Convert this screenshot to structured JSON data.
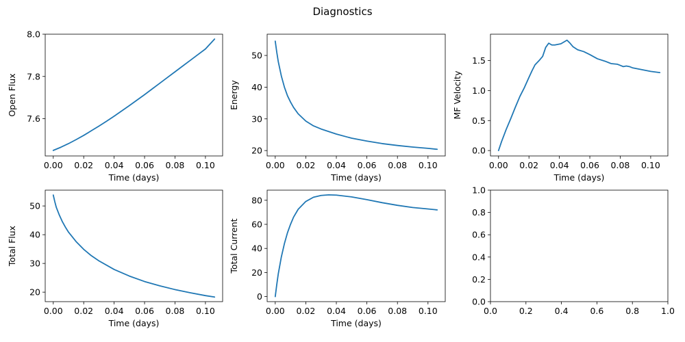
{
  "title": "Diagnostics",
  "colors": {
    "series": "#1f77b4"
  },
  "chart_data": [
    {
      "type": "line",
      "title": "",
      "xlabel": "Time (days)",
      "ylabel": "Open Flux",
      "xlim": [
        -0.0053,
        0.1113
      ],
      "ylim": [
        7.4237,
        8.0
      ],
      "xticks": [
        0.0,
        0.02,
        0.04,
        0.06,
        0.08,
        0.1
      ],
      "xticklabels": [
        "0.00",
        "0.02",
        "0.04",
        "0.06",
        "0.08",
        "0.10"
      ],
      "yticks": [
        7.6,
        7.8,
        8.0
      ],
      "yticklabels": [
        "7.6",
        "7.8",
        "8.0"
      ],
      "series": [
        {
          "x": [
            0.0,
            0.005,
            0.01,
            0.015,
            0.02,
            0.025,
            0.03,
            0.035,
            0.04,
            0.045,
            0.05,
            0.055,
            0.06,
            0.065,
            0.07,
            0.075,
            0.08,
            0.085,
            0.09,
            0.095,
            0.1,
            0.106
          ],
          "y": [
            7.45,
            7.465,
            7.482,
            7.501,
            7.521,
            7.543,
            7.565,
            7.588,
            7.612,
            7.637,
            7.662,
            7.688,
            7.714,
            7.741,
            7.768,
            7.795,
            7.822,
            7.849,
            7.876,
            7.903,
            7.93,
            7.977
          ]
        }
      ]
    },
    {
      "type": "line",
      "title": "",
      "xlabel": "Time (days)",
      "ylabel": "Energy",
      "xlim": [
        -0.0053,
        0.1113
      ],
      "ylim": [
        18.3,
        56.7
      ],
      "xticks": [
        0.0,
        0.02,
        0.04,
        0.06,
        0.08,
        0.1
      ],
      "xticklabels": [
        "0.00",
        "0.02",
        "0.04",
        "0.06",
        "0.08",
        "0.10"
      ],
      "yticks": [
        20,
        30,
        40,
        50
      ],
      "yticklabels": [
        "20",
        "30",
        "40",
        "50"
      ],
      "series": [
        {
          "x": [
            0.0,
            0.001,
            0.002,
            0.004,
            0.006,
            0.008,
            0.01,
            0.012,
            0.015,
            0.02,
            0.025,
            0.03,
            0.04,
            0.05,
            0.06,
            0.07,
            0.08,
            0.09,
            0.1,
            0.106
          ],
          "y": [
            54.5,
            51.0,
            48.0,
            43.5,
            40.0,
            37.3,
            35.3,
            33.6,
            31.6,
            29.3,
            27.8,
            26.8,
            25.2,
            23.9,
            23.0,
            22.2,
            21.6,
            21.1,
            20.7,
            20.4
          ]
        }
      ]
    },
    {
      "type": "line",
      "title": "",
      "xlabel": "Time (days)",
      "ylabel": "MF Velocity",
      "xlim": [
        -0.0053,
        0.1113
      ],
      "ylim": [
        -0.09,
        1.94
      ],
      "xticks": [
        0.0,
        0.02,
        0.04,
        0.06,
        0.08,
        0.1
      ],
      "xticklabels": [
        "0.00",
        "0.02",
        "0.04",
        "0.06",
        "0.08",
        "0.10"
      ],
      "yticks": [
        0.0,
        0.5,
        1.0,
        1.5
      ],
      "yticklabels": [
        "0.0",
        "0.5",
        "1.0",
        "1.5"
      ],
      "series": [
        {
          "x": [
            0.0,
            0.002,
            0.005,
            0.008,
            0.011,
            0.014,
            0.017,
            0.02,
            0.022,
            0.024,
            0.027,
            0.029,
            0.031,
            0.033,
            0.035,
            0.037,
            0.039,
            0.041,
            0.043,
            0.045,
            0.047,
            0.049,
            0.052,
            0.056,
            0.06,
            0.065,
            0.07,
            0.074,
            0.078,
            0.08,
            0.082,
            0.084,
            0.086,
            0.088,
            0.092,
            0.096,
            0.1,
            0.106
          ],
          "y": [
            0.0,
            0.15,
            0.35,
            0.53,
            0.72,
            0.9,
            1.05,
            1.22,
            1.33,
            1.43,
            1.51,
            1.57,
            1.72,
            1.79,
            1.76,
            1.76,
            1.77,
            1.78,
            1.81,
            1.84,
            1.79,
            1.73,
            1.68,
            1.65,
            1.6,
            1.53,
            1.49,
            1.45,
            1.44,
            1.42,
            1.4,
            1.41,
            1.4,
            1.38,
            1.36,
            1.34,
            1.32,
            1.3
          ]
        }
      ]
    },
    {
      "type": "line",
      "title": "",
      "xlabel": "Time (days)",
      "ylabel": "Total Flux",
      "xlim": [
        -0.0053,
        0.1113
      ],
      "ylim": [
        16.7,
        55.5
      ],
      "xticks": [
        0.0,
        0.02,
        0.04,
        0.06,
        0.08,
        0.1
      ],
      "xticklabels": [
        "0.00",
        "0.02",
        "0.04",
        "0.06",
        "0.08",
        "0.10"
      ],
      "yticks": [
        20,
        30,
        40,
        50
      ],
      "yticklabels": [
        "20",
        "30",
        "40",
        "50"
      ],
      "series": [
        {
          "x": [
            0.0,
            0.001,
            0.002,
            0.004,
            0.006,
            0.008,
            0.01,
            0.015,
            0.02,
            0.025,
            0.03,
            0.04,
            0.05,
            0.06,
            0.07,
            0.08,
            0.09,
            0.1,
            0.106
          ],
          "y": [
            53.8,
            51.5,
            49.5,
            46.8,
            44.5,
            42.6,
            40.9,
            37.6,
            34.9,
            32.7,
            30.9,
            27.9,
            25.6,
            23.7,
            22.2,
            20.9,
            19.8,
            18.8,
            18.3
          ]
        }
      ]
    },
    {
      "type": "line",
      "title": "",
      "xlabel": "Time (days)",
      "ylabel": "Total Current",
      "xlim": [
        -0.0053,
        0.1113
      ],
      "ylim": [
        -4.2,
        88.4
      ],
      "xticks": [
        0.0,
        0.02,
        0.04,
        0.06,
        0.08,
        0.1
      ],
      "xticklabels": [
        "0.00",
        "0.02",
        "0.04",
        "0.06",
        "0.08",
        "0.10"
      ],
      "yticks": [
        0,
        20,
        40,
        60,
        80
      ],
      "yticklabels": [
        "0",
        "20",
        "40",
        "60",
        "80"
      ],
      "series": [
        {
          "x": [
            0.0,
            0.001,
            0.002,
            0.004,
            0.006,
            0.008,
            0.01,
            0.012,
            0.015,
            0.02,
            0.025,
            0.03,
            0.035,
            0.04,
            0.05,
            0.06,
            0.07,
            0.08,
            0.09,
            0.1,
            0.106
          ],
          "y": [
            0.0,
            10.0,
            19.0,
            33.0,
            44.0,
            53.0,
            60.0,
            66.0,
            72.5,
            79.0,
            82.5,
            84.0,
            84.5,
            84.3,
            82.8,
            80.5,
            78.0,
            75.8,
            74.0,
            72.8,
            72.0
          ]
        }
      ]
    },
    {
      "type": "line",
      "title": "",
      "xlabel": "",
      "ylabel": "",
      "xlim": [
        0.0,
        1.0
      ],
      "ylim": [
        0.0,
        1.0
      ],
      "xticks": [
        0.0,
        0.2,
        0.4,
        0.6,
        0.8,
        1.0
      ],
      "xticklabels": [
        "0.0",
        "0.2",
        "0.4",
        "0.6",
        "0.8",
        "1.0"
      ],
      "yticks": [
        0.0,
        0.2,
        0.4,
        0.6,
        0.8,
        1.0
      ],
      "yticklabels": [
        "0.0",
        "0.2",
        "0.4",
        "0.6",
        "0.8",
        "1.0"
      ],
      "series": []
    }
  ]
}
